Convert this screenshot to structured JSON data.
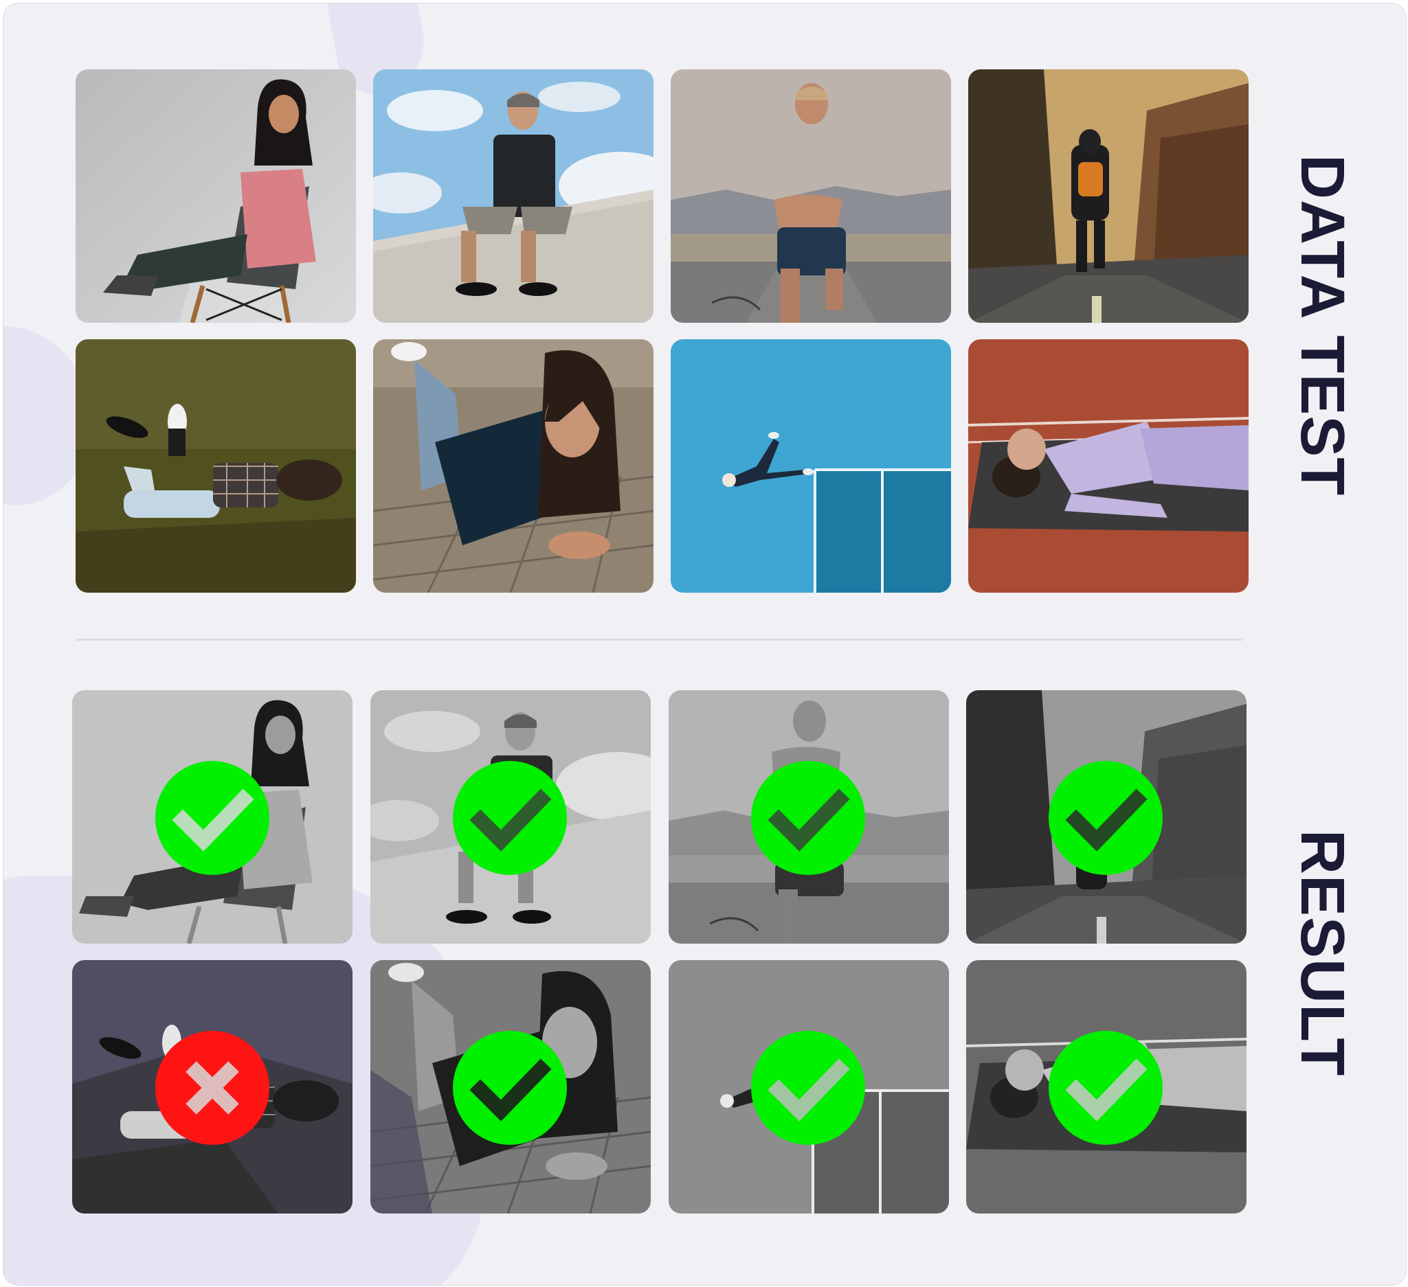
{
  "labels": {
    "data_test": "DATA TEST",
    "result": "RESULT"
  },
  "data_test_images": [
    {
      "subject": "woman-sitting-on-chair",
      "color": "#c9cacb"
    },
    {
      "subject": "man-sitting-on-wall",
      "color": "#a9cde6"
    },
    {
      "subject": "man-running-on-road",
      "color": "#b8b0ac"
    },
    {
      "subject": "person-walking-forest-road",
      "color": "#6e5a40"
    },
    {
      "subject": "person-lying-on-grass",
      "color": "#4f5128"
    },
    {
      "subject": "woman-lying-on-pavement",
      "color": "#8a7a66"
    },
    {
      "subject": "person-lying-on-blue-court",
      "color": "#3ba3cf"
    },
    {
      "subject": "woman-lying-on-track",
      "color": "#a84a33"
    }
  ],
  "result_images": [
    {
      "subject": "woman-sitting-on-chair",
      "result": "correct"
    },
    {
      "subject": "man-sitting-on-wall",
      "result": "correct"
    },
    {
      "subject": "man-running-on-road",
      "result": "correct"
    },
    {
      "subject": "person-walking-forest-road",
      "result": "correct"
    },
    {
      "subject": "person-lying-on-grass",
      "result": "incorrect"
    },
    {
      "subject": "woman-lying-on-pavement",
      "result": "correct"
    },
    {
      "subject": "person-lying-on-blue-court",
      "result": "correct"
    },
    {
      "subject": "woman-lying-on-track",
      "result": "correct"
    }
  ],
  "colors": {
    "correct": "#00f000",
    "incorrect": "#ff1414",
    "label": "#1c1b36",
    "panel": "#f1f0f4"
  }
}
